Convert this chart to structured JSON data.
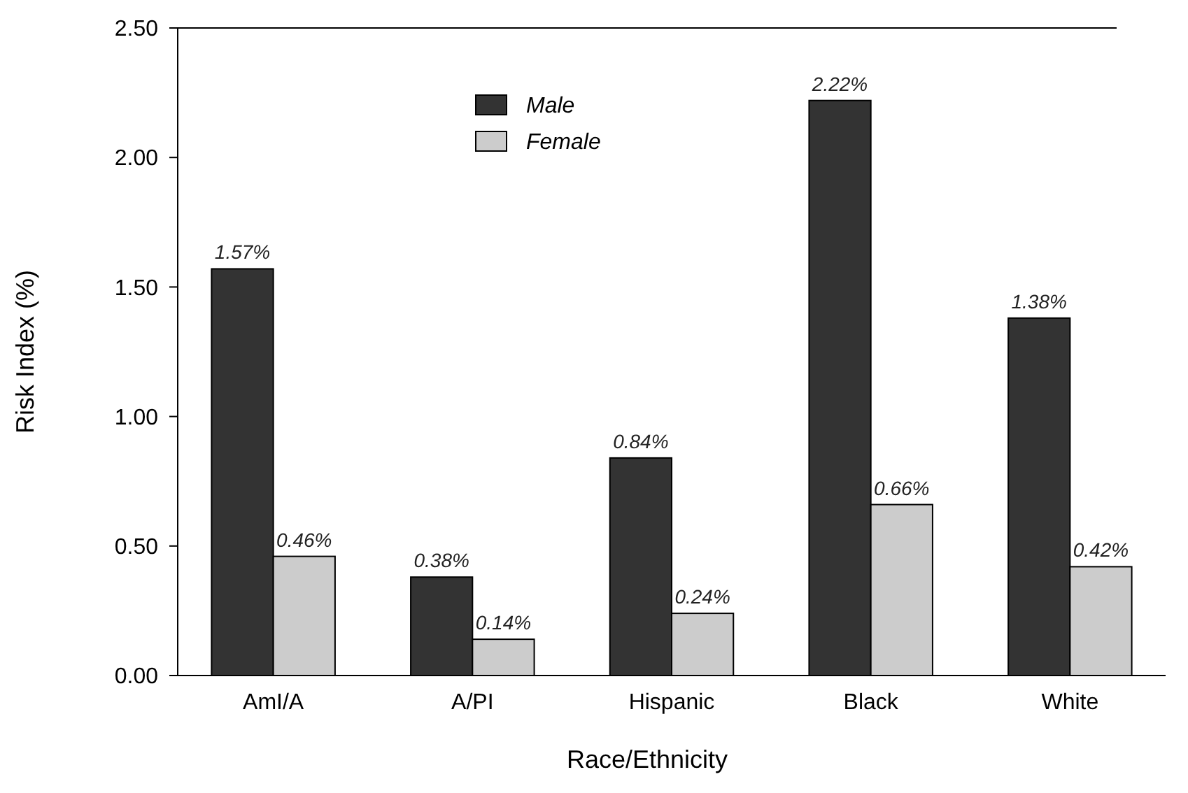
{
  "chart_data": {
    "type": "bar",
    "xlabel": "Race/Ethnicity",
    "ylabel": "Risk Index (%)",
    "categories": [
      "AmI/A",
      "A/PI",
      "Hispanic",
      "Black",
      "White"
    ],
    "series": [
      {
        "name": "Male",
        "color": "#333333",
        "values": [
          1.57,
          0.38,
          0.84,
          2.22,
          1.38
        ],
        "value_labels": [
          "1.57%",
          "0.38%",
          "0.84%",
          "2.22%",
          "1.38%"
        ]
      },
      {
        "name": "Female",
        "color": "#cccccc",
        "values": [
          0.46,
          0.14,
          0.24,
          0.66,
          0.42
        ],
        "value_labels": [
          "0.46%",
          "0.14%",
          "0.24%",
          "0.66%",
          "0.42%"
        ]
      }
    ],
    "ylim": [
      0,
      2.5
    ],
    "yticks": [
      {
        "value": 0,
        "label": "0.00"
      },
      {
        "value": 0.5,
        "label": "0.50"
      },
      {
        "value": 1,
        "label": "1.00"
      },
      {
        "value": 1.5,
        "label": "1.50"
      },
      {
        "value": 2,
        "label": "2.00"
      },
      {
        "value": 2.5,
        "label": "2.50"
      }
    ],
    "grid": false,
    "legend": "top"
  }
}
